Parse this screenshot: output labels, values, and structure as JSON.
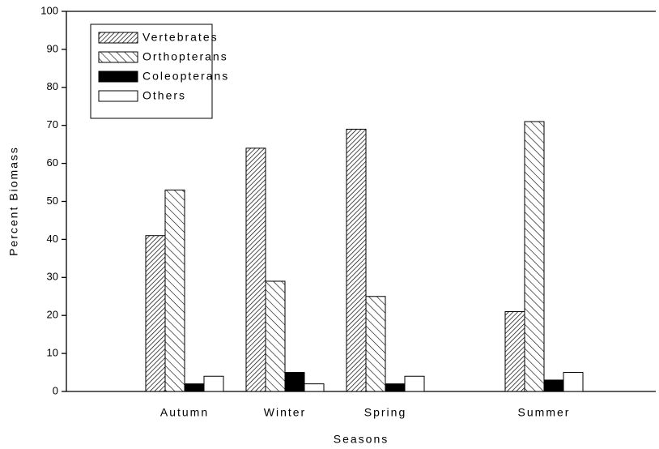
{
  "chart_data": {
    "type": "bar",
    "x_label": "Seasons",
    "y_label": "Percent Biomass",
    "categories": [
      "Autumn",
      "Winter",
      "Spring",
      "Summer"
    ],
    "series": [
      {
        "name": "Vertebrates",
        "color": "#000000",
        "hatch": "dense-forward",
        "values": [
          41,
          64,
          69,
          21
        ]
      },
      {
        "name": "Orthopterans",
        "color": "#000000",
        "hatch": "backward",
        "values": [
          53,
          29,
          25,
          71
        ]
      },
      {
        "name": "Coleopterans",
        "color": "#000000",
        "hatch": "solid",
        "values": [
          2,
          5,
          2,
          3
        ]
      },
      {
        "name": "Others",
        "color": "#000000",
        "hatch": "none",
        "values": [
          4,
          2,
          4,
          5
        ]
      }
    ],
    "ylim": [
      0,
      100
    ],
    "yticks": [
      0,
      10,
      20,
      30,
      40,
      50,
      60,
      70,
      80,
      90,
      100
    ],
    "grid": false,
    "legend": "upper left"
  }
}
